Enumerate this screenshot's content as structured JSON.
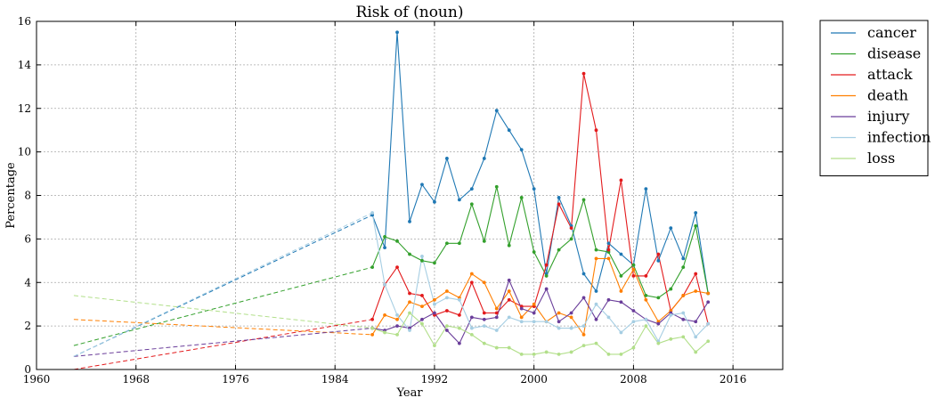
{
  "chart_data": {
    "type": "line",
    "title": "Risk of (noun)",
    "xlabel": "Year",
    "ylabel": "Percentage",
    "xlim": [
      1960,
      2020
    ],
    "ylim": [
      0,
      16
    ],
    "xticks": [
      1960,
      1968,
      1976,
      1984,
      1992,
      2000,
      2008,
      2016
    ],
    "yticks": [
      0,
      2,
      4,
      6,
      8,
      10,
      12,
      14,
      16
    ],
    "grid": true,
    "legend_position": "outside-right",
    "x": [
      1987,
      1988,
      1989,
      1990,
      1991,
      1992,
      1993,
      1994,
      1995,
      1996,
      1997,
      1998,
      1999,
      2000,
      2001,
      2002,
      2003,
      2004,
      2005,
      2006,
      2007,
      2008,
      2009,
      2010,
      2011,
      2012,
      2013,
      2014
    ],
    "series": [
      {
        "name": "cancer",
        "color": "#1f78b4",
        "extrapolated_start": [
          1963,
          0.6
        ],
        "values": [
          7.1,
          5.6,
          15.5,
          6.8,
          8.5,
          7.7,
          9.7,
          7.8,
          8.3,
          9.7,
          11.9,
          11.0,
          10.1,
          8.3,
          4.4,
          7.9,
          6.6,
          4.4,
          3.6,
          5.8,
          5.3,
          4.8,
          8.3,
          5.0,
          6.5,
          5.1,
          7.2,
          3.5
        ]
      },
      {
        "name": "disease",
        "color": "#33a02c",
        "extrapolated_start": [
          1963,
          1.1
        ],
        "values": [
          4.7,
          6.1,
          5.9,
          5.3,
          5.0,
          4.9,
          5.8,
          5.8,
          7.6,
          5.9,
          8.4,
          5.7,
          7.9,
          5.4,
          4.3,
          5.5,
          6.0,
          7.8,
          5.5,
          5.4,
          4.3,
          4.8,
          3.4,
          3.3,
          3.7,
          4.7,
          6.6,
          3.5
        ]
      },
      {
        "name": "attack",
        "color": "#e31a1c",
        "extrapolated_start": [
          1963,
          0.0
        ],
        "values": [
          2.3,
          3.9,
          4.7,
          3.5,
          3.4,
          2.5,
          2.7,
          2.5,
          4.0,
          2.6,
          2.6,
          3.2,
          2.9,
          2.9,
          4.8,
          7.6,
          6.5,
          13.6,
          11.0,
          5.5,
          8.7,
          4.3,
          4.3,
          5.3,
          2.7,
          3.4,
          4.4,
          2.1
        ]
      },
      {
        "name": "death",
        "color": "#ff7f00",
        "extrapolated_start": [
          1963,
          2.3
        ],
        "values": [
          1.6,
          2.5,
          2.3,
          3.1,
          2.9,
          3.2,
          3.6,
          3.3,
          4.4,
          4.0,
          2.8,
          3.6,
          2.4,
          3.0,
          2.2,
          2.6,
          2.4,
          1.6,
          5.1,
          5.1,
          3.6,
          4.6,
          3.2,
          2.2,
          2.7,
          3.4,
          3.6,
          3.5
        ]
      },
      {
        "name": "injury",
        "color": "#6a3d9a",
        "extrapolated_start": [
          1963,
          0.6
        ],
        "values": [
          1.9,
          1.8,
          2.0,
          1.9,
          2.3,
          2.6,
          1.8,
          1.2,
          2.4,
          2.3,
          2.4,
          4.1,
          2.8,
          2.6,
          3.7,
          2.2,
          2.6,
          3.3,
          2.3,
          3.2,
          3.1,
          2.7,
          2.3,
          2.1,
          2.6,
          2.3,
          2.2,
          3.1
        ]
      },
      {
        "name": "infection",
        "color": "#a6cee3",
        "extrapolated_start": [
          1963,
          0.6
        ],
        "values": [
          7.2,
          3.9,
          2.5,
          1.8,
          5.2,
          3.0,
          3.3,
          3.2,
          1.9,
          2.0,
          1.8,
          2.4,
          2.2,
          2.2,
          2.2,
          1.9,
          1.9,
          2.0,
          3.0,
          2.4,
          1.7,
          2.2,
          2.3,
          1.3,
          2.5,
          2.6,
          1.5,
          2.1
        ]
      },
      {
        "name": "loss",
        "color": "#b2df8a",
        "extrapolated_start": [
          1963,
          3.4
        ],
        "values": [
          1.9,
          1.7,
          1.6,
          2.6,
          2.1,
          1.1,
          2.0,
          1.9,
          1.6,
          1.2,
          1.0,
          1.0,
          0.7,
          0.7,
          0.8,
          0.7,
          0.8,
          1.1,
          1.2,
          0.7,
          0.7,
          1.0,
          2.0,
          1.2,
          1.4,
          1.5,
          0.8,
          1.3
        ]
      }
    ]
  }
}
